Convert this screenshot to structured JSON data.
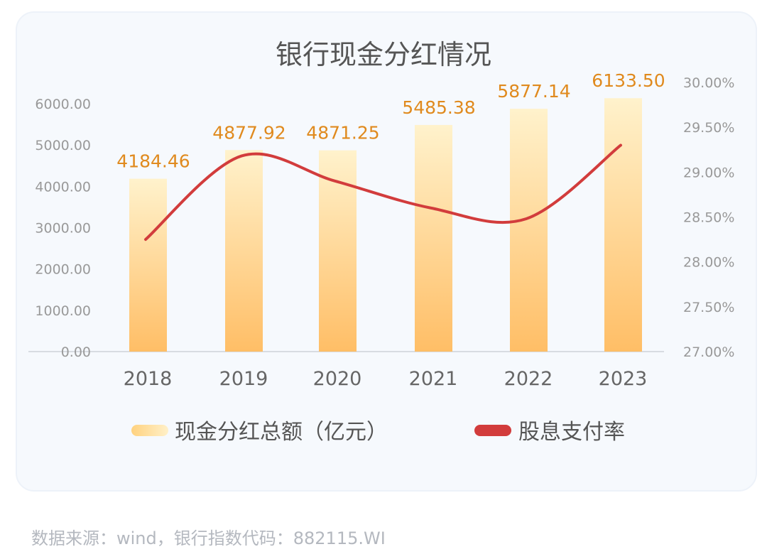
{
  "chart_data": {
    "type": "bar+line",
    "title": "银行现金分红情况",
    "categories": [
      "2018",
      "2019",
      "2020",
      "2021",
      "2022",
      "2023"
    ],
    "series": [
      {
        "name": "现金分红总额（亿元）",
        "type": "bar",
        "axis": "left",
        "values": [
          4184.46,
          4877.92,
          4871.25,
          5485.38,
          5877.14,
          6133.5
        ],
        "data_labels": [
          "4184.46",
          "4877.92",
          "4871.25",
          "5485.38",
          "5877.14",
          "6133.50"
        ],
        "color_top": "#fff2cc",
        "color_bottom": "#ffbe66"
      },
      {
        "name": "股息支付率",
        "type": "line",
        "axis": "right",
        "values": [
          28.25,
          29.18,
          28.9,
          28.6,
          28.48,
          29.3
        ],
        "color": "#d23c3c"
      }
    ],
    "left_axis": {
      "range": [
        0,
        6000
      ],
      "ticks": [
        "0.00",
        "1000.00",
        "2000.00",
        "3000.00",
        "4000.00",
        "5000.00",
        "6000.00"
      ]
    },
    "right_axis": {
      "range": [
        27,
        30
      ],
      "ticks": [
        "27.00%",
        "27.50%",
        "28.00%",
        "28.50%",
        "29.00%",
        "29.50%",
        "30.00%"
      ]
    },
    "grid": false,
    "legend_placement": "bottom",
    "label_color": "#e08a1e"
  },
  "footer": {
    "source": "数据来源：wind，银行指数代码：882115.WI"
  }
}
